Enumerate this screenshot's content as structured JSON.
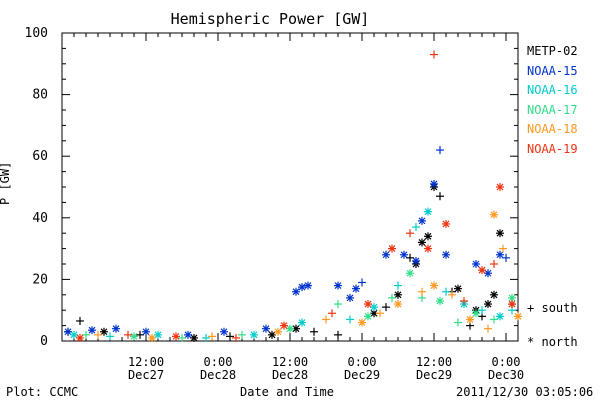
{
  "chart_data": {
    "type": "scatter",
    "title": "Hemispheric Power [GW]",
    "xlabel": "Date and Time",
    "ylabel": "P [GW]",
    "ylim": [
      0,
      100
    ],
    "yticks": [
      0,
      20,
      40,
      60,
      80,
      100
    ],
    "xlim": [
      "2011-12-26T22:00",
      "2011-12-30T02:00"
    ],
    "xticks": [
      {
        "time": "2011-12-27T12:00",
        "line1": "12:00",
        "line2": "Dec27"
      },
      {
        "time": "2011-12-28T00:00",
        "line1": "0:00",
        "line2": "Dec28"
      },
      {
        "time": "2011-12-28T12:00",
        "line1": "12:00",
        "line2": "Dec28"
      },
      {
        "time": "2011-12-29T00:00",
        "line1": "0:00",
        "line2": "Dec29"
      },
      {
        "time": "2011-12-29T12:00",
        "line1": "12:00",
        "line2": "Dec29"
      },
      {
        "time": "2011-12-30T00:00",
        "line1": "0:00",
        "line2": "Dec30"
      }
    ],
    "marker_key": [
      {
        "symbol": "+",
        "label": "south"
      },
      {
        "symbol": "*",
        "label": "north"
      }
    ],
    "series": [
      {
        "name": "METP-02",
        "color": "#000000",
        "points": [
          [
            "2011-12-26T23:00",
            3,
            "+"
          ],
          [
            "2011-12-27T01:00",
            6.5,
            "+"
          ],
          [
            "2011-12-27T05:00",
            3,
            "*"
          ],
          [
            "2011-12-27T11:00",
            2,
            "+"
          ],
          [
            "2011-12-27T20:00",
            1,
            "*"
          ],
          [
            "2011-12-28T02:00",
            1.5,
            "+"
          ],
          [
            "2011-12-28T09:00",
            2,
            "*"
          ],
          [
            "2011-12-28T13:00",
            4,
            "*"
          ],
          [
            "2011-12-28T16:00",
            3,
            "+"
          ],
          [
            "2011-12-28T20:00",
            2,
            "+"
          ],
          [
            "2011-12-29T02:00",
            9,
            "*"
          ],
          [
            "2011-12-29T04:00",
            11,
            "+"
          ],
          [
            "2011-12-29T06:00",
            15,
            "*"
          ],
          [
            "2011-12-29T08:00",
            27,
            "+"
          ],
          [
            "2011-12-29T09:00",
            25,
            "*"
          ],
          [
            "2011-12-29T10:00",
            32,
            "*"
          ],
          [
            "2011-12-29T11:00",
            34,
            "*"
          ],
          [
            "2011-12-29T12:00",
            50,
            "*"
          ],
          [
            "2011-12-29T13:00",
            47,
            "+"
          ],
          [
            "2011-12-29T15:00",
            16,
            "+"
          ],
          [
            "2011-12-29T16:00",
            17,
            "*"
          ],
          [
            "2011-12-29T18:00",
            5,
            "+"
          ],
          [
            "2011-12-29T19:00",
            10,
            "*"
          ],
          [
            "2011-12-29T20:00",
            8,
            "+"
          ],
          [
            "2011-12-29T21:00",
            12,
            "*"
          ],
          [
            "2011-12-29T22:00",
            15,
            "*"
          ],
          [
            "2011-12-29T23:00",
            35,
            "*"
          ],
          [
            "2011-12-30T01:00",
            12,
            "+"
          ]
        ]
      },
      {
        "name": "NOAA-15",
        "color": "#0033cc",
        "points": [
          [
            "2011-12-26T23:00",
            3,
            "*"
          ],
          [
            "2011-12-27T03:00",
            3.5,
            "*"
          ],
          [
            "2011-12-27T07:00",
            4,
            "*"
          ],
          [
            "2011-12-27T12:00",
            3,
            "*"
          ],
          [
            "2011-12-27T19:00",
            2,
            "*"
          ],
          [
            "2011-12-28T01:00",
            3,
            "*"
          ],
          [
            "2011-12-28T08:00",
            4,
            "*"
          ],
          [
            "2011-12-28T13:00",
            16,
            "*"
          ],
          [
            "2011-12-28T14:00",
            17.5,
            "*"
          ],
          [
            "2011-12-28T15:00",
            18,
            "*"
          ],
          [
            "2011-12-28T20:00",
            18,
            "*"
          ],
          [
            "2011-12-28T22:00",
            14,
            "*"
          ],
          [
            "2011-12-28T23:00",
            17,
            "*"
          ],
          [
            "2011-12-29T00:00",
            19,
            "+"
          ],
          [
            "2011-12-29T04:00",
            28,
            "*"
          ],
          [
            "2011-12-29T07:00",
            28,
            "*"
          ],
          [
            "2011-12-29T09:00",
            26,
            "*"
          ],
          [
            "2011-12-29T10:00",
            39,
            "*"
          ],
          [
            "2011-12-29T12:00",
            51,
            "*"
          ],
          [
            "2011-12-29T13:00",
            62,
            "+"
          ],
          [
            "2011-12-29T14:00",
            28,
            "*"
          ],
          [
            "2011-12-29T19:00",
            25,
            "*"
          ],
          [
            "2011-12-29T21:00",
            22,
            "*"
          ],
          [
            "2011-12-29T23:00",
            28,
            "*"
          ],
          [
            "2011-12-30T00:00",
            27,
            "+"
          ]
        ]
      },
      {
        "name": "NOAA-16",
        "color": "#00cccc",
        "points": [
          [
            "2011-12-27T00:00",
            2,
            "*"
          ],
          [
            "2011-12-27T06:00",
            1.5,
            "+"
          ],
          [
            "2011-12-27T14:00",
            2,
            "*"
          ],
          [
            "2011-12-27T22:00",
            1,
            "+"
          ],
          [
            "2011-12-28T06:00",
            2,
            "*"
          ],
          [
            "2011-12-28T14:00",
            6,
            "*"
          ],
          [
            "2011-12-28T22:00",
            7,
            "+"
          ],
          [
            "2011-12-29T02:00",
            11,
            "*"
          ],
          [
            "2011-12-29T06:00",
            18,
            "+"
          ],
          [
            "2011-12-29T09:00",
            37,
            "+"
          ],
          [
            "2011-12-29T11:00",
            42,
            "*"
          ],
          [
            "2011-12-29T14:00",
            16,
            "+"
          ],
          [
            "2011-12-29T17:00",
            12,
            "*"
          ],
          [
            "2011-12-29T20:00",
            10,
            "+"
          ],
          [
            "2011-12-29T23:00",
            8,
            "*"
          ],
          [
            "2011-12-30T01:00",
            10,
            "+"
          ]
        ]
      },
      {
        "name": "NOAA-17",
        "color": "#33dd88",
        "points": [
          [
            "2011-12-27T02:00",
            2,
            "+"
          ],
          [
            "2011-12-27T10:00",
            1.5,
            "*"
          ],
          [
            "2011-12-27T18:00",
            1,
            "+"
          ],
          [
            "2011-12-28T04:00",
            2,
            "+"
          ],
          [
            "2011-12-28T12:00",
            4,
            "*"
          ],
          [
            "2011-12-28T20:00",
            12,
            "+"
          ],
          [
            "2011-12-29T01:00",
            8,
            "*"
          ],
          [
            "2011-12-29T05:00",
            14,
            "+"
          ],
          [
            "2011-12-29T08:00",
            22,
            "*"
          ],
          [
            "2011-12-29T10:00",
            14,
            "+"
          ],
          [
            "2011-12-29T13:00",
            13,
            "*"
          ],
          [
            "2011-12-29T16:00",
            6,
            "+"
          ],
          [
            "2011-12-29T19:00",
            9,
            "*"
          ],
          [
            "2011-12-29T22:00",
            7,
            "+"
          ],
          [
            "2011-12-30T01:00",
            14,
            "*"
          ]
        ]
      },
      {
        "name": "NOAA-18",
        "color": "#ff9922",
        "points": [
          [
            "2011-12-27T04:00",
            2,
            "+"
          ],
          [
            "2011-12-27T13:00",
            1,
            "*"
          ],
          [
            "2011-12-27T23:00",
            1.5,
            "+"
          ],
          [
            "2011-12-28T10:00",
            3,
            "*"
          ],
          [
            "2011-12-28T18:00",
            7,
            "+"
          ],
          [
            "2011-12-29T00:00",
            6,
            "*"
          ],
          [
            "2011-12-29T03:00",
            9,
            "+"
          ],
          [
            "2011-12-29T06:00",
            12,
            "*"
          ],
          [
            "2011-12-29T10:00",
            16,
            "+"
          ],
          [
            "2011-12-29T12:00",
            18,
            "*"
          ],
          [
            "2011-12-29T15:00",
            15,
            "+"
          ],
          [
            "2011-12-29T18:00",
            7,
            "*"
          ],
          [
            "2011-12-29T21:00",
            4,
            "+"
          ],
          [
            "2011-12-29T22:00",
            41,
            "*"
          ],
          [
            "2011-12-29T23:30",
            30,
            "+"
          ],
          [
            "2011-12-30T02:00",
            8,
            "*"
          ]
        ]
      },
      {
        "name": "NOAA-19",
        "color": "#ee3311",
        "points": [
          [
            "2011-12-27T01:00",
            1,
            "*"
          ],
          [
            "2011-12-27T09:00",
            2,
            "+"
          ],
          [
            "2011-12-27T17:00",
            1.5,
            "*"
          ],
          [
            "2011-12-28T03:00",
            1,
            "+"
          ],
          [
            "2011-12-28T11:00",
            5,
            "*"
          ],
          [
            "2011-12-28T19:00",
            9,
            "+"
          ],
          [
            "2011-12-29T01:00",
            12,
            "*"
          ],
          [
            "2011-12-29T05:00",
            30,
            "*"
          ],
          [
            "2011-12-29T08:00",
            35,
            "+"
          ],
          [
            "2011-12-29T11:00",
            30,
            "*"
          ],
          [
            "2011-12-29T12:00",
            93,
            "+"
          ],
          [
            "2011-12-29T14:00",
            38,
            "*"
          ],
          [
            "2011-12-29T17:00",
            13,
            "+"
          ],
          [
            "2011-12-29T20:00",
            23,
            "*"
          ],
          [
            "2011-12-29T22:00",
            25,
            "+"
          ],
          [
            "2011-12-29T23:00",
            50,
            "*"
          ],
          [
            "2011-12-30T01:00",
            12,
            "*"
          ]
        ]
      }
    ]
  },
  "footer": {
    "credit": "Plot: CCMC",
    "timestamp": "2011/12/30 03:05:06"
  }
}
